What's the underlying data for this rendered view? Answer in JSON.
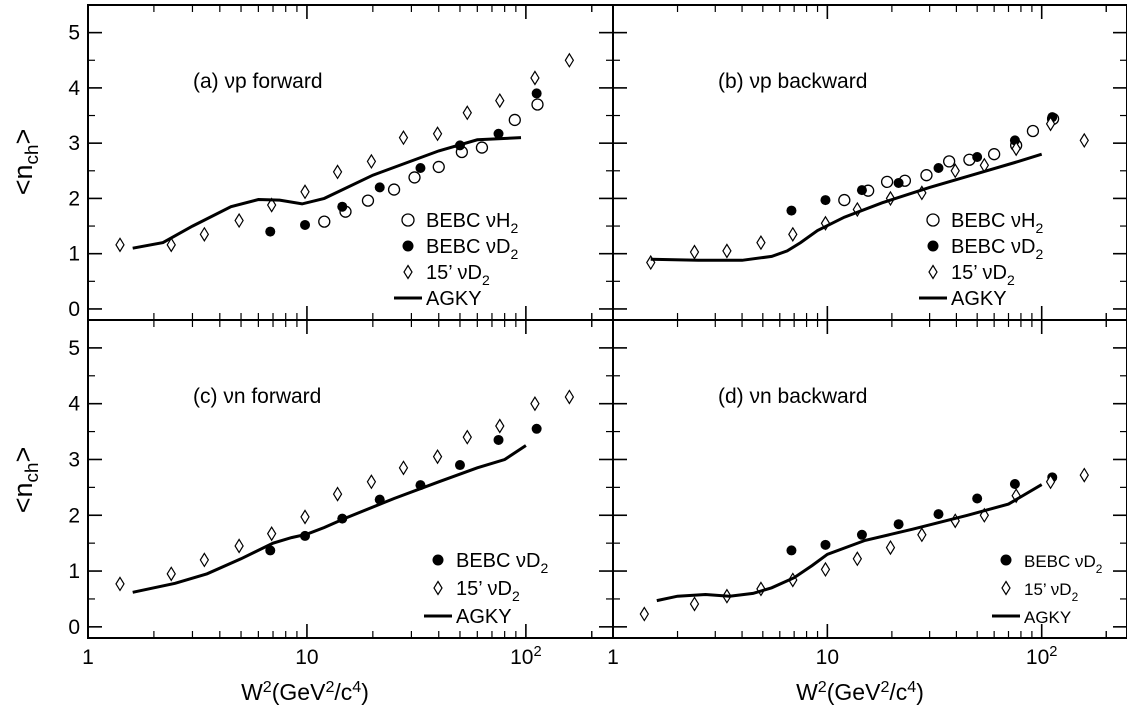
{
  "figure": {
    "x_axis_title": "W²(GeV²/c⁴)",
    "y_axis_title": "<n_ch>"
  },
  "chart_data": [
    {
      "type": "scatter",
      "panel_label": "(a) νp forward",
      "x_scale": "log",
      "xlim": [
        1,
        250
      ],
      "ylim": [
        -0.2,
        5.5
      ],
      "x_ticks": [
        1,
        10,
        100
      ],
      "x_tick_labels": [
        "1",
        "10",
        "10²"
      ],
      "y_ticks": [
        0,
        1,
        2,
        3,
        4,
        5
      ],
      "y_tick_labels": [
        "0",
        "1",
        "2",
        "3",
        "4",
        "5"
      ],
      "legend_placement": "bottom-right",
      "series": [
        {
          "name": "BEBC νH₂",
          "marker": "open-circle",
          "points": [
            [
              12,
              1.58
            ],
            [
              15,
              1.76
            ],
            [
              19,
              1.96
            ],
            [
              25,
              2.16
            ],
            [
              31,
              2.38
            ],
            [
              40,
              2.57
            ],
            [
              51,
              2.84
            ],
            [
              63,
              2.92
            ],
            [
              89,
              3.42
            ],
            [
              113,
              3.7
            ]
          ]
        },
        {
          "name": "BEBC νD₂",
          "marker": "filled-circle",
          "points": [
            [
              6.8,
              1.4
            ],
            [
              9.8,
              1.52
            ],
            [
              14.5,
              1.85
            ],
            [
              21.5,
              2.2
            ],
            [
              33,
              2.55
            ],
            [
              50,
              2.96
            ],
            [
              75,
              3.17
            ],
            [
              112,
              3.9
            ]
          ]
        },
        {
          "name": "15’ νD₂",
          "marker": "open-diamond",
          "points": [
            [
              1.4,
              1.16
            ],
            [
              2.4,
              1.16
            ],
            [
              3.4,
              1.35
            ],
            [
              4.9,
              1.6
            ],
            [
              6.9,
              1.88
            ],
            [
              9.8,
              2.12
            ],
            [
              13.8,
              2.48
            ],
            [
              19.7,
              2.67
            ],
            [
              27.6,
              3.1
            ],
            [
              39.5,
              3.17
            ],
            [
              54,
              3.55
            ],
            [
              76,
              3.77
            ],
            [
              110,
              4.18
            ],
            [
              158,
              4.5
            ]
          ]
        },
        {
          "name": "AGKY",
          "marker": "line",
          "points": [
            [
              1.6,
              1.1
            ],
            [
              2.2,
              1.2
            ],
            [
              3,
              1.5
            ],
            [
              4.5,
              1.85
            ],
            [
              6,
              1.98
            ],
            [
              7.5,
              1.97
            ],
            [
              9.5,
              1.9
            ],
            [
              12,
              2.0
            ],
            [
              20,
              2.42
            ],
            [
              40,
              2.86
            ],
            [
              60,
              3.06
            ],
            [
              95,
              3.1
            ]
          ]
        }
      ]
    },
    {
      "type": "scatter",
      "panel_label": "(b) νp backward",
      "x_scale": "log",
      "xlim": [
        1,
        250
      ],
      "ylim": [
        -0.2,
        5.5
      ],
      "x_ticks": [
        1,
        10,
        100
      ],
      "x_tick_labels": [
        "1",
        "10",
        "10²"
      ],
      "y_ticks": [
        0,
        1,
        2,
        3,
        4,
        5
      ],
      "y_tick_labels": [
        "0",
        "1",
        "2",
        "3",
        "4",
        "5"
      ],
      "legend_placement": "bottom-right",
      "series": [
        {
          "name": "BEBC νH₂",
          "marker": "open-circle",
          "points": [
            [
              12,
              1.97
            ],
            [
              15.5,
              2.14
            ],
            [
              19,
              2.3
            ],
            [
              23,
              2.32
            ],
            [
              29,
              2.42
            ],
            [
              37,
              2.67
            ],
            [
              46,
              2.7
            ],
            [
              60,
              2.8
            ],
            [
              76,
              2.96
            ],
            [
              91,
              3.22
            ],
            [
              113,
              3.44
            ]
          ]
        },
        {
          "name": "BEBC νD₂",
          "marker": "filled-circle",
          "points": [
            [
              6.8,
              1.78
            ],
            [
              9.8,
              1.97
            ],
            [
              14.5,
              2.15
            ],
            [
              21.5,
              2.28
            ],
            [
              33,
              2.55
            ],
            [
              50,
              2.75
            ],
            [
              75,
              3.05
            ],
            [
              112,
              3.47
            ]
          ]
        },
        {
          "name": "15’ νD₂",
          "marker": "open-diamond",
          "points": [
            [
              1.5,
              0.84
            ],
            [
              2.4,
              1.03
            ],
            [
              3.4,
              1.05
            ],
            [
              4.9,
              1.2
            ],
            [
              6.9,
              1.35
            ],
            [
              9.8,
              1.55
            ],
            [
              13.8,
              1.8
            ],
            [
              19.7,
              2.0
            ],
            [
              27.6,
              2.1
            ],
            [
              39.5,
              2.5
            ],
            [
              54,
              2.6
            ],
            [
              76,
              2.9
            ],
            [
              110,
              3.35
            ],
            [
              158,
              3.05
            ]
          ]
        },
        {
          "name": "AGKY",
          "marker": "line",
          "points": [
            [
              1.5,
              0.9
            ],
            [
              2.5,
              0.88
            ],
            [
              4,
              0.88
            ],
            [
              5.5,
              0.95
            ],
            [
              6.5,
              1.05
            ],
            [
              7.5,
              1.2
            ],
            [
              9,
              1.42
            ],
            [
              12,
              1.66
            ],
            [
              18,
              1.92
            ],
            [
              30,
              2.2
            ],
            [
              50,
              2.45
            ],
            [
              75,
              2.65
            ],
            [
              100,
              2.8
            ]
          ]
        }
      ]
    },
    {
      "type": "scatter",
      "panel_label": "(c) νn forward",
      "x_scale": "log",
      "xlim": [
        1,
        250
      ],
      "ylim": [
        -0.2,
        5.5
      ],
      "x_ticks": [
        1,
        10,
        100
      ],
      "x_tick_labels": [
        "1",
        "10",
        "10²"
      ],
      "y_ticks": [
        0,
        1,
        2,
        3,
        4,
        5
      ],
      "y_tick_labels": [
        "0",
        "1",
        "2",
        "3",
        "4",
        "5"
      ],
      "legend_placement": "bottom-right",
      "series": [
        {
          "name": "BEBC νD₂",
          "marker": "filled-circle",
          "points": [
            [
              6.8,
              1.37
            ],
            [
              9.8,
              1.63
            ],
            [
              14.5,
              1.94
            ],
            [
              21.5,
              2.28
            ],
            [
              33,
              2.54
            ],
            [
              50,
              2.9
            ],
            [
              75,
              3.35
            ],
            [
              112,
              3.55
            ]
          ]
        },
        {
          "name": "15’ νD₂",
          "marker": "open-diamond",
          "points": [
            [
              1.4,
              0.77
            ],
            [
              2.4,
              0.95
            ],
            [
              3.4,
              1.2
            ],
            [
              4.9,
              1.45
            ],
            [
              6.9,
              1.67
            ],
            [
              9.8,
              1.97
            ],
            [
              13.8,
              2.38
            ],
            [
              19.7,
              2.6
            ],
            [
              27.6,
              2.85
            ],
            [
              39.5,
              3.05
            ],
            [
              54,
              3.4
            ],
            [
              76,
              3.6
            ],
            [
              110,
              4.0
            ],
            [
              158,
              4.12
            ]
          ]
        },
        {
          "name": "AGKY",
          "marker": "line",
          "points": [
            [
              1.6,
              0.62
            ],
            [
              2.5,
              0.78
            ],
            [
              3.5,
              0.95
            ],
            [
              5,
              1.22
            ],
            [
              7,
              1.5
            ],
            [
              8.5,
              1.6
            ],
            [
              10,
              1.66
            ],
            [
              12,
              1.78
            ],
            [
              15,
              1.95
            ],
            [
              25,
              2.3
            ],
            [
              40,
              2.6
            ],
            [
              60,
              2.85
            ],
            [
              80,
              3.0
            ],
            [
              100,
              3.25
            ]
          ]
        }
      ]
    },
    {
      "type": "scatter",
      "panel_label": "(d) νn backward",
      "x_scale": "log",
      "xlim": [
        1,
        250
      ],
      "ylim": [
        -0.2,
        5.5
      ],
      "x_ticks": [
        1,
        10,
        100
      ],
      "x_tick_labels": [
        "1",
        "10",
        "10²"
      ],
      "y_ticks": [
        0,
        1,
        2,
        3,
        4,
        5
      ],
      "y_tick_labels": [
        "0",
        "1",
        "2",
        "3",
        "4",
        "5"
      ],
      "legend_placement": "bottom-right",
      "series": [
        {
          "name": "BEBC νD₂",
          "marker": "filled-circle",
          "points": [
            [
              6.8,
              1.37
            ],
            [
              9.8,
              1.47
            ],
            [
              14.5,
              1.65
            ],
            [
              21.5,
              1.84
            ],
            [
              33,
              2.02
            ],
            [
              50,
              2.3
            ],
            [
              75,
              2.56
            ],
            [
              112,
              2.68
            ]
          ]
        },
        {
          "name": "15’ νD₂",
          "marker": "open-diamond",
          "points": [
            [
              1.4,
              0.23
            ],
            [
              2.4,
              0.41
            ],
            [
              3.4,
              0.55
            ],
            [
              4.9,
              0.68
            ],
            [
              6.9,
              0.84
            ],
            [
              9.8,
              1.03
            ],
            [
              13.8,
              1.22
            ],
            [
              19.7,
              1.42
            ],
            [
              27.6,
              1.65
            ],
            [
              39.5,
              1.9
            ],
            [
              54,
              2.0
            ],
            [
              76,
              2.35
            ],
            [
              110,
              2.6
            ],
            [
              158,
              2.72
            ]
          ]
        },
        {
          "name": "AGKY",
          "marker": "line",
          "points": [
            [
              1.6,
              0.47
            ],
            [
              2,
              0.55
            ],
            [
              2.7,
              0.58
            ],
            [
              3.5,
              0.55
            ],
            [
              4.5,
              0.6
            ],
            [
              5.5,
              0.7
            ],
            [
              7,
              0.88
            ],
            [
              8.5,
              1.1
            ],
            [
              10,
              1.3
            ],
            [
              15,
              1.55
            ],
            [
              25,
              1.75
            ],
            [
              45,
              2.0
            ],
            [
              70,
              2.2
            ],
            [
              100,
              2.55
            ]
          ]
        }
      ]
    }
  ]
}
